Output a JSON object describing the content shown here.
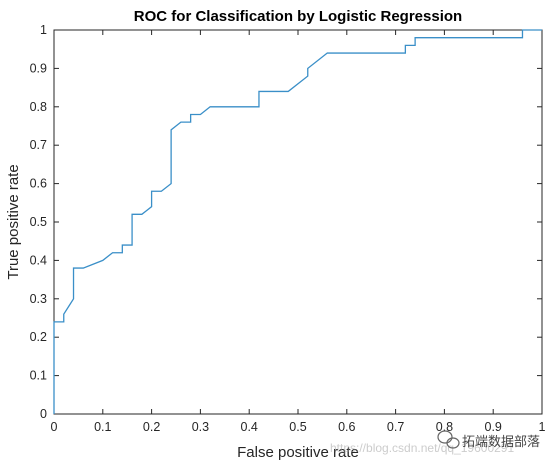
{
  "chart_data": {
    "type": "line",
    "title": "ROC for Classification by Logistic Regression",
    "xlabel": "False positive rate",
    "ylabel": "True positive rate",
    "xlim": [
      0,
      1
    ],
    "ylim": [
      0,
      1
    ],
    "x_ticks": [
      "0",
      "0.1",
      "0.2",
      "0.3",
      "0.4",
      "0.5",
      "0.6",
      "0.7",
      "0.8",
      "0.9",
      "1"
    ],
    "y_ticks": [
      "0",
      "0.1",
      "0.2",
      "0.3",
      "0.4",
      "0.5",
      "0.6",
      "0.7",
      "0.8",
      "0.9",
      "1"
    ],
    "grid": false,
    "line_color": "#3a8fc8",
    "series": [
      {
        "x": [
          0,
          0,
          0.02,
          0.02,
          0.03,
          0.04,
          0.04,
          0.06,
          0.08,
          0.1,
          0.12,
          0.14,
          0.14,
          0.16,
          0.16,
          0.18,
          0.19,
          0.2,
          0.2,
          0.22,
          0.24,
          0.24,
          0.26,
          0.28,
          0.28,
          0.3,
          0.32,
          0.42,
          0.42,
          0.48,
          0.52,
          0.52,
          0.56,
          0.72,
          0.72,
          0.74,
          0.74,
          0.96,
          0.96,
          1
        ],
        "y": [
          0,
          0.24,
          0.24,
          0.26,
          0.28,
          0.3,
          0.38,
          0.38,
          0.39,
          0.4,
          0.42,
          0.42,
          0.44,
          0.44,
          0.52,
          0.52,
          0.53,
          0.54,
          0.58,
          0.58,
          0.6,
          0.74,
          0.76,
          0.76,
          0.78,
          0.78,
          0.8,
          0.8,
          0.84,
          0.84,
          0.88,
          0.9,
          0.94,
          0.94,
          0.96,
          0.96,
          0.98,
          0.98,
          1,
          1
        ]
      }
    ]
  },
  "watermark": {
    "url_text": "https://blog.csdn.net/qq_19600291",
    "brand_text": "拓端数据部落",
    "brand_icon": "wechat-icon"
  }
}
